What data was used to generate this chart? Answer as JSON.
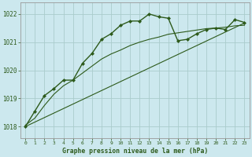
{
  "title": "Graphe pression niveau de la mer (hPa)",
  "bg_color": "#cce8ee",
  "grid_color": "#aacccc",
  "line_color": "#2d5a1b",
  "xlim": [
    -0.5,
    23.5
  ],
  "ylim": [
    1017.6,
    1022.4
  ],
  "yticks": [
    1018,
    1019,
    1020,
    1021,
    1022
  ],
  "xticks": [
    0,
    1,
    2,
    3,
    4,
    5,
    6,
    7,
    8,
    9,
    10,
    11,
    12,
    13,
    14,
    15,
    16,
    17,
    18,
    19,
    20,
    21,
    22,
    23
  ],
  "hours": [
    0,
    1,
    2,
    3,
    4,
    5,
    6,
    7,
    8,
    9,
    10,
    11,
    12,
    13,
    14,
    15,
    16,
    17,
    18,
    19,
    20,
    21,
    22,
    23
  ],
  "pressure_main": [
    1018.0,
    1018.55,
    1019.1,
    1019.35,
    1019.65,
    1019.65,
    1020.25,
    1020.6,
    1021.1,
    1021.3,
    1021.6,
    1021.75,
    1021.75,
    1022.0,
    1021.9,
    1021.85,
    1021.05,
    1021.1,
    1021.3,
    1021.45,
    1021.5,
    1021.45,
    1021.8,
    1021.7
  ],
  "pressure_smooth": [
    1018.05,
    1018.3,
    1018.75,
    1019.15,
    1019.45,
    1019.65,
    1019.9,
    1020.15,
    1020.4,
    1020.58,
    1020.72,
    1020.88,
    1021.0,
    1021.1,
    1021.18,
    1021.28,
    1021.33,
    1021.38,
    1021.43,
    1021.48,
    1021.5,
    1021.53,
    1021.58,
    1021.6
  ],
  "pressure_linear": [
    1018.0,
    1018.16,
    1018.32,
    1018.48,
    1018.64,
    1018.8,
    1018.96,
    1019.12,
    1019.28,
    1019.44,
    1019.6,
    1019.76,
    1019.92,
    1020.08,
    1020.24,
    1020.4,
    1020.56,
    1020.72,
    1020.88,
    1021.04,
    1021.2,
    1021.36,
    1021.52,
    1021.68
  ]
}
